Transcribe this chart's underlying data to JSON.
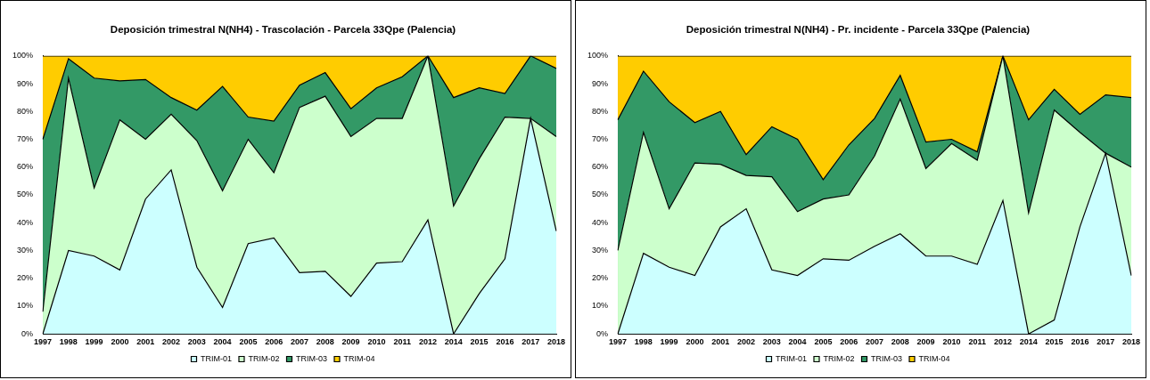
{
  "chart_data": [
    {
      "type": "area",
      "title": "Deposición trimestral N(NH4) - Trascolación - Parcela 33Qpe (Palencia)",
      "stacked": true,
      "legend": "bottom",
      "grid": false,
      "marker": "none",
      "categories": [
        "1997",
        "1998",
        "1999",
        "2000",
        "2001",
        "2002",
        "2003",
        "2004",
        "2005",
        "2006",
        "2007",
        "2008",
        "2009",
        "2010",
        "2011",
        "2012",
        "2014",
        "2015",
        "2016",
        "2017",
        "2018"
      ],
      "ylim": [
        0,
        100
      ],
      "yticks": [
        {
          "value": 0,
          "label": "0%"
        },
        {
          "value": 10,
          "label": "10%"
        },
        {
          "value": 20,
          "label": "20%"
        },
        {
          "value": 30,
          "label": "30%"
        },
        {
          "value": 40,
          "label": "40%"
        },
        {
          "value": 50,
          "label": "50%"
        },
        {
          "value": 60,
          "label": "60%"
        },
        {
          "value": 70,
          "label": "70%"
        },
        {
          "value": 80,
          "label": "80%"
        },
        {
          "value": 90,
          "label": "90%"
        },
        {
          "value": 100,
          "label": "100%"
        }
      ],
      "series": [
        {
          "name": "TRIM-01",
          "color": "#ccffff",
          "values": [
            0,
            30,
            28,
            23,
            48.5,
            59,
            24,
            9.5,
            32.5,
            34.5,
            22,
            22.5,
            13.5,
            25.5,
            26,
            41,
            0,
            14.5,
            27,
            77.5,
            37
          ]
        },
        {
          "name": "TRIM-02",
          "color": "#ccffcc",
          "values": [
            8,
            62,
            24.5,
            54,
            21.5,
            20,
            45.5,
            42,
            37.5,
            23.5,
            59.5,
            63,
            57.5,
            52,
            51.5,
            59,
            46,
            48.5,
            51,
            0,
            34
          ]
        },
        {
          "name": "TRIM-03",
          "color": "#339966",
          "values": [
            62,
            7,
            39.5,
            14,
            21.5,
            6,
            11,
            37.5,
            8,
            18.5,
            8,
            8.5,
            10,
            11,
            15,
            0,
            39,
            25.5,
            8.5,
            22.5,
            24.5
          ]
        },
        {
          "name": "TRIM-04",
          "color": "#ffcc00",
          "values": [
            30,
            1,
            8,
            9,
            8.5,
            15,
            19.5,
            11,
            22,
            23.5,
            10.5,
            6,
            19,
            11.5,
            7.5,
            0,
            15,
            11.5,
            13.5,
            0,
            4.5
          ]
        }
      ]
    },
    {
      "type": "area",
      "title": "Deposición trimestral N(NH4) - Pr. incidente - Parcela 33Qpe (Palencia)",
      "stacked": true,
      "legend": "bottom",
      "grid": false,
      "marker": "none",
      "categories": [
        "1997",
        "1998",
        "1999",
        "2000",
        "2001",
        "2002",
        "2003",
        "2004",
        "2005",
        "2006",
        "2007",
        "2008",
        "2009",
        "2010",
        "2011",
        "2012",
        "2014",
        "2015",
        "2016",
        "2017",
        "2018"
      ],
      "ylim": [
        0,
        100
      ],
      "yticks": [
        {
          "value": 0,
          "label": "0%"
        },
        {
          "value": 10,
          "label": "10%"
        },
        {
          "value": 20,
          "label": "20%"
        },
        {
          "value": 30,
          "label": "30%"
        },
        {
          "value": 40,
          "label": "40%"
        },
        {
          "value": 50,
          "label": "50%"
        },
        {
          "value": 60,
          "label": "60%"
        },
        {
          "value": 70,
          "label": "70%"
        },
        {
          "value": 80,
          "label": "80%"
        },
        {
          "value": 90,
          "label": "90%"
        },
        {
          "value": 100,
          "label": "100%"
        }
      ],
      "series": [
        {
          "name": "TRIM-01",
          "color": "#ccffff",
          "values": [
            0,
            29,
            24,
            21,
            38.5,
            45,
            23,
            21,
            27,
            26.5,
            31.5,
            36,
            28,
            28,
            25,
            48,
            0,
            5,
            38.5,
            65,
            21
          ]
        },
        {
          "name": "TRIM-02",
          "color": "#ccffcc",
          "values": [
            30,
            43.5,
            21,
            40.5,
            22.5,
            12,
            33.5,
            23,
            21.5,
            23.5,
            32.5,
            48.5,
            31.5,
            40.5,
            37.5,
            52,
            43.5,
            75.5,
            34,
            0,
            39
          ]
        },
        {
          "name": "TRIM-03",
          "color": "#339966",
          "values": [
            47,
            22,
            38.5,
            14.5,
            19,
            7.5,
            18,
            26,
            7,
            18,
            13.5,
            8.5,
            9.5,
            1.5,
            3,
            0,
            33.5,
            7.5,
            6.5,
            21,
            25
          ]
        },
        {
          "name": "TRIM-04",
          "color": "#ffcc00",
          "values": [
            23,
            5.5,
            16.5,
            24,
            20,
            35.5,
            25.5,
            30,
            44.5,
            32,
            22.5,
            7,
            31,
            30,
            34.5,
            0,
            23,
            12,
            21,
            14,
            15
          ]
        }
      ]
    }
  ]
}
